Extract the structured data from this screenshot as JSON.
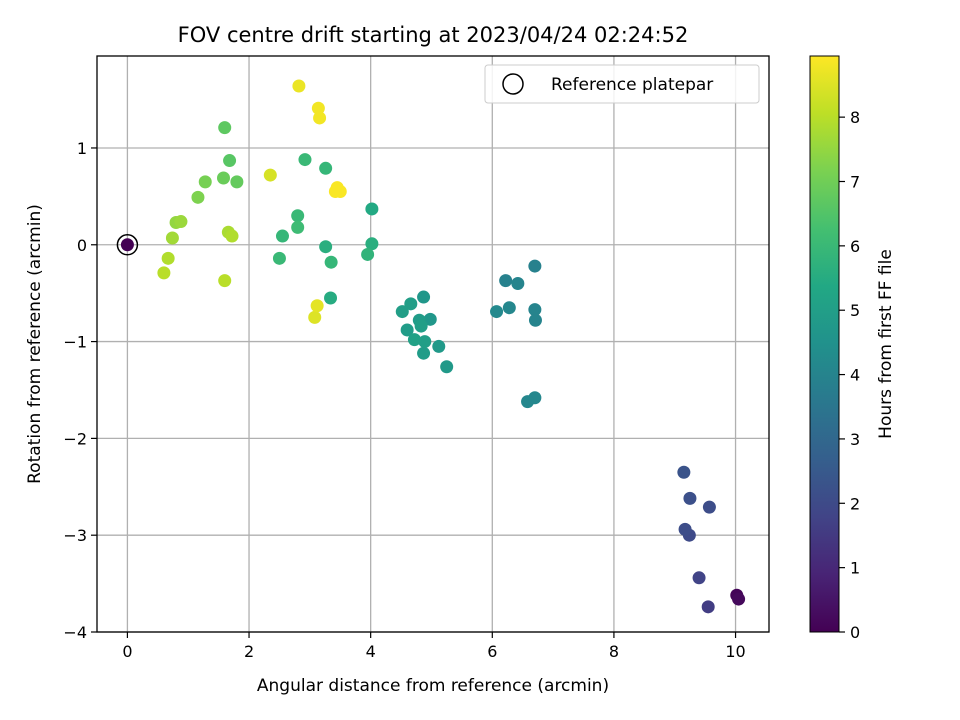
{
  "chart_data": {
    "type": "scatter",
    "title": "FOV centre drift starting at 2023/04/24 02:24:52",
    "xlabel": "Angular distance from reference (arcmin)",
    "ylabel": "Rotation from reference (arcmin)",
    "xlim": [
      -0.5,
      10.55
    ],
    "ylim": [
      -4.0,
      1.95
    ],
    "xticks": [
      0,
      2,
      4,
      6,
      8,
      10
    ],
    "yticks": [
      -4,
      -3,
      -2,
      -1,
      0,
      1
    ],
    "grid": true,
    "legend": {
      "label": "Reference platepar",
      "placement": "top-right",
      "marker": "open-circle"
    },
    "reference_point": {
      "x": 0,
      "y": 0
    },
    "colorbar": {
      "label": "Hours from first FF file",
      "colormap": "viridis",
      "range": [
        0,
        8.95
      ],
      "ticks": [
        0,
        1,
        2,
        3,
        4,
        5,
        6,
        7,
        8
      ]
    },
    "series": [
      {
        "points": [
          {
            "x": 0.0,
            "y": 0.0,
            "c": 0.0
          },
          {
            "x": 10.02,
            "y": -3.62,
            "c": 0.1
          },
          {
            "x": 10.05,
            "y": -3.66,
            "c": 0.2
          },
          {
            "x": 9.15,
            "y": -2.35,
            "c": 2.3
          },
          {
            "x": 9.25,
            "y": -2.62,
            "c": 2.2
          },
          {
            "x": 9.57,
            "y": -2.71,
            "c": 2.1
          },
          {
            "x": 9.17,
            "y": -2.94,
            "c": 2.1
          },
          {
            "x": 9.24,
            "y": -3.0,
            "c": 2.0
          },
          {
            "x": 9.4,
            "y": -3.44,
            "c": 1.8
          },
          {
            "x": 9.55,
            "y": -3.74,
            "c": 1.6
          },
          {
            "x": 6.7,
            "y": -0.22,
            "c": 3.9
          },
          {
            "x": 6.22,
            "y": -0.37,
            "c": 3.9
          },
          {
            "x": 6.42,
            "y": -0.4,
            "c": 4.0
          },
          {
            "x": 6.28,
            "y": -0.65,
            "c": 4.1
          },
          {
            "x": 6.07,
            "y": -0.69,
            "c": 4.2
          },
          {
            "x": 6.7,
            "y": -0.67,
            "c": 4.0
          },
          {
            "x": 6.71,
            "y": -0.78,
            "c": 4.0
          },
          {
            "x": 6.7,
            "y": -1.58,
            "c": 4.1
          },
          {
            "x": 6.58,
            "y": -1.62,
            "c": 4.1
          },
          {
            "x": 4.87,
            "y": -0.54,
            "c": 4.7
          },
          {
            "x": 4.66,
            "y": -0.61,
            "c": 5.0
          },
          {
            "x": 4.52,
            "y": -0.69,
            "c": 5.0
          },
          {
            "x": 4.98,
            "y": -0.77,
            "c": 4.7
          },
          {
            "x": 4.8,
            "y": -0.78,
            "c": 4.9
          },
          {
            "x": 4.83,
            "y": -0.84,
            "c": 5.0
          },
          {
            "x": 4.6,
            "y": -0.88,
            "c": 4.9
          },
          {
            "x": 4.72,
            "y": -0.98,
            "c": 5.1
          },
          {
            "x": 4.89,
            "y": -1.0,
            "c": 5.0
          },
          {
            "x": 5.12,
            "y": -1.05,
            "c": 4.8
          },
          {
            "x": 4.87,
            "y": -1.12,
            "c": 4.9
          },
          {
            "x": 5.25,
            "y": -1.26,
            "c": 4.8
          },
          {
            "x": 4.02,
            "y": 0.37,
            "c": 5.4
          },
          {
            "x": 4.02,
            "y": 0.01,
            "c": 5.6
          },
          {
            "x": 3.95,
            "y": -0.1,
            "c": 5.8
          },
          {
            "x": 2.92,
            "y": 0.88,
            "c": 6.0
          },
          {
            "x": 3.26,
            "y": 0.79,
            "c": 5.9
          },
          {
            "x": 2.8,
            "y": 0.3,
            "c": 6.0
          },
          {
            "x": 2.8,
            "y": 0.18,
            "c": 6.1
          },
          {
            "x": 2.55,
            "y": 0.09,
            "c": 5.9
          },
          {
            "x": 3.26,
            "y": -0.02,
            "c": 5.6
          },
          {
            "x": 2.5,
            "y": -0.14,
            "c": 6.0
          },
          {
            "x": 3.35,
            "y": -0.18,
            "c": 5.9
          },
          {
            "x": 3.34,
            "y": -0.55,
            "c": 5.5
          },
          {
            "x": 1.6,
            "y": 1.21,
            "c": 6.7
          },
          {
            "x": 1.68,
            "y": 0.87,
            "c": 6.6
          },
          {
            "x": 1.28,
            "y": 0.65,
            "c": 7.1
          },
          {
            "x": 1.58,
            "y": 0.69,
            "c": 6.9
          },
          {
            "x": 1.8,
            "y": 0.65,
            "c": 6.8
          },
          {
            "x": 1.16,
            "y": 0.49,
            "c": 7.2
          },
          {
            "x": 0.8,
            "y": 0.23,
            "c": 7.5
          },
          {
            "x": 0.88,
            "y": 0.24,
            "c": 7.6
          },
          {
            "x": 0.74,
            "y": 0.07,
            "c": 7.7
          },
          {
            "x": 1.66,
            "y": 0.13,
            "c": 7.8
          },
          {
            "x": 1.72,
            "y": 0.09,
            "c": 7.9
          },
          {
            "x": 0.67,
            "y": -0.14,
            "c": 7.9
          },
          {
            "x": 0.6,
            "y": -0.29,
            "c": 8.0
          },
          {
            "x": 1.6,
            "y": -0.37,
            "c": 8.0
          },
          {
            "x": 2.35,
            "y": 0.72,
            "c": 8.4
          },
          {
            "x": 2.82,
            "y": 1.64,
            "c": 8.7
          },
          {
            "x": 3.14,
            "y": 1.41,
            "c": 8.8
          },
          {
            "x": 3.16,
            "y": 1.31,
            "c": 8.8
          },
          {
            "x": 3.45,
            "y": 0.59,
            "c": 8.9
          },
          {
            "x": 3.5,
            "y": 0.55,
            "c": 8.9
          },
          {
            "x": 3.42,
            "y": 0.55,
            "c": 8.9
          },
          {
            "x": 3.12,
            "y": -0.63,
            "c": 8.6
          },
          {
            "x": 3.08,
            "y": -0.75,
            "c": 8.5
          }
        ]
      }
    ]
  }
}
